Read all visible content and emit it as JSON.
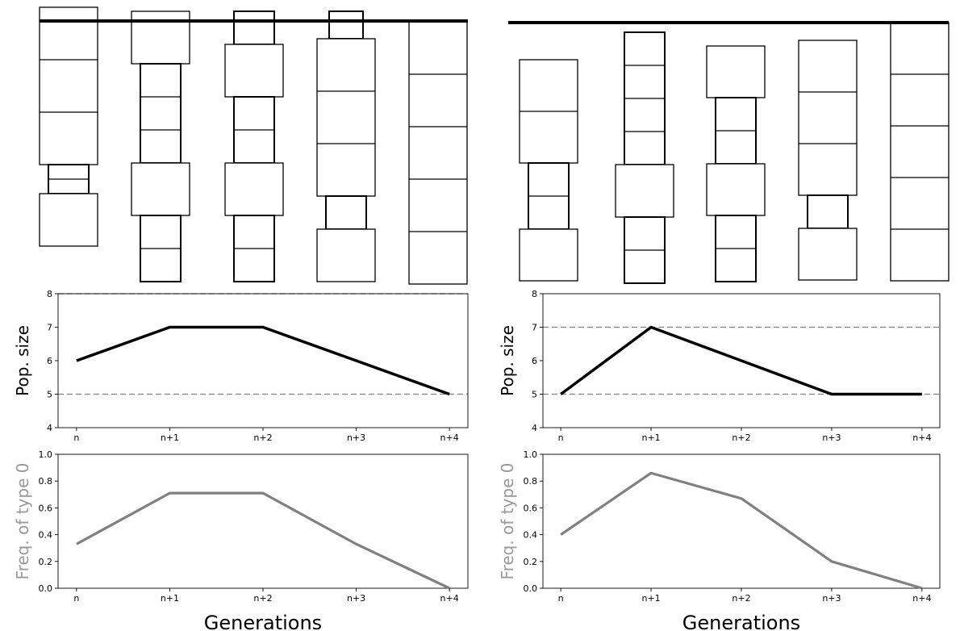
{
  "chart_data": [
    {
      "panel": "left-schematic",
      "type": "diagram",
      "description_columns": [
        {
          "generation": "n",
          "blocks": [
            {
              "size": "large",
              "count": 3
            },
            {
              "size": "small",
              "count": 2
            },
            {
              "size": "large",
              "count": 1
            }
          ]
        },
        {
          "generation": "n+1",
          "blocks": [
            {
              "size": "large",
              "count": 1
            },
            {
              "size": "small",
              "count": 3
            },
            {
              "size": "large",
              "count": 1
            },
            {
              "size": "small",
              "count": 2
            }
          ]
        },
        {
          "generation": "n+2",
          "blocks": [
            {
              "size": "small",
              "count": 1
            },
            {
              "size": "large",
              "count": 1
            },
            {
              "size": "small",
              "count": 2
            },
            {
              "size": "large",
              "count": 1
            },
            {
              "size": "small",
              "count": 2
            }
          ]
        },
        {
          "generation": "n+3",
          "blocks": [
            {
              "size": "small",
              "count": 1
            },
            {
              "size": "large",
              "count": 3
            },
            {
              "size": "small",
              "count": 1
            },
            {
              "size": "large",
              "count": 1
            }
          ]
        },
        {
          "generation": "n+4",
          "blocks": [
            {
              "size": "large",
              "count": 5
            }
          ]
        }
      ]
    },
    {
      "panel": "right-schematic",
      "type": "diagram",
      "description_columns": [
        {
          "generation": "n",
          "blocks": [
            {
              "size": "large",
              "count": 2
            },
            {
              "size": "small",
              "count": 2
            },
            {
              "size": "large",
              "count": 1
            }
          ]
        },
        {
          "generation": "n+1",
          "blocks": [
            {
              "size": "small",
              "count": 4
            },
            {
              "size": "large",
              "count": 1
            },
            {
              "size": "small",
              "count": 2
            }
          ]
        },
        {
          "generation": "n+2",
          "blocks": [
            {
              "size": "large",
              "count": 1
            },
            {
              "size": "small",
              "count": 2
            },
            {
              "size": "large",
              "count": 1
            },
            {
              "size": "small",
              "count": 2
            }
          ]
        },
        {
          "generation": "n+3",
          "blocks": [
            {
              "size": "large",
              "count": 3
            },
            {
              "size": "small",
              "count": 1
            },
            {
              "size": "large",
              "count": 1
            }
          ]
        },
        {
          "generation": "n+4",
          "blocks": [
            {
              "size": "large",
              "count": 5
            }
          ]
        }
      ]
    },
    {
      "panel": "left-popsize",
      "type": "line",
      "x": [
        "n",
        "n+1",
        "n+2",
        "n+3",
        "n+4"
      ],
      "series": [
        {
          "values": [
            6,
            7,
            7,
            6,
            5
          ],
          "color": "#000000"
        }
      ],
      "ylabel": "Pop. size",
      "ylim": [
        4,
        8
      ],
      "yticks": [
        4,
        5,
        6,
        7,
        8
      ],
      "hlines": [
        5,
        8
      ]
    },
    {
      "panel": "right-popsize",
      "type": "line",
      "x": [
        "n",
        "n+1",
        "n+2",
        "n+3",
        "n+4"
      ],
      "series": [
        {
          "values": [
            5,
            7,
            6,
            5,
            5
          ],
          "color": "#000000"
        }
      ],
      "ylabel": "Pop. size",
      "ylim": [
        4,
        8
      ],
      "yticks": [
        4,
        5,
        6,
        7,
        8
      ],
      "hlines": [
        5,
        7
      ]
    },
    {
      "panel": "left-freq",
      "type": "line",
      "x": [
        "n",
        "n+1",
        "n+2",
        "n+3",
        "n+4"
      ],
      "series": [
        {
          "values": [
            0.33,
            0.71,
            0.71,
            0.33,
            0.0
          ],
          "color": "#808080"
        }
      ],
      "ylabel": "Freq. of type 0",
      "xlabel": "Generations",
      "ylim": [
        0.0,
        1.0
      ],
      "yticks": [
        "0.0",
        "0.2",
        "0.4",
        "0.6",
        "0.8",
        "1.0"
      ]
    },
    {
      "panel": "right-freq",
      "type": "line",
      "x": [
        "n",
        "n+1",
        "n+2",
        "n+3",
        "n+4"
      ],
      "series": [
        {
          "values": [
            0.4,
            0.86,
            0.67,
            0.2,
            0.0
          ],
          "color": "#808080"
        }
      ],
      "ylabel": "Freq. of type 0",
      "xlabel": "Generations",
      "ylim": [
        0.0,
        1.0
      ],
      "yticks": [
        "0.0",
        "0.2",
        "0.4",
        "0.6",
        "0.8",
        "1.0"
      ]
    }
  ]
}
